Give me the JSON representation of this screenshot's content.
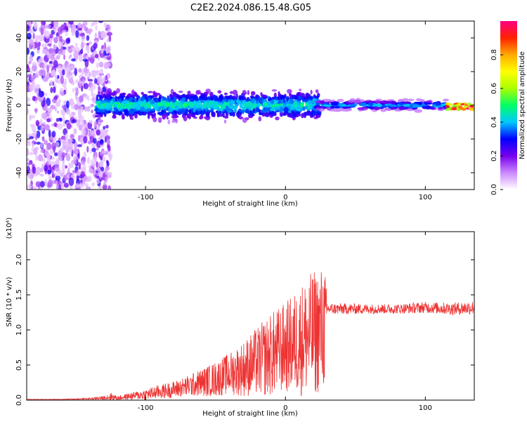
{
  "title": "C2E2.2024.086.15.48.G05",
  "chart_data": [
    {
      "type": "heatmap",
      "xlabel": "Height of straight line (km)",
      "ylabel": "Frequency (Hz)",
      "xlim": [
        -185,
        135
      ],
      "ylim": [
        -50,
        50
      ],
      "xticks": [
        -100,
        0,
        100
      ],
      "yticks": [
        -40,
        -20,
        0,
        20,
        40
      ],
      "colorbar": {
        "label": "Normalized spectral amplitude",
        "range": [
          0.0,
          1.0
        ],
        "ticks": [
          "0.0",
          "0.2",
          "0.4",
          "0.6",
          "0.8"
        ],
        "colors": [
          "#ffffff",
          "#cc88ff",
          "#7700ee",
          "#0000ff",
          "#00c8ff",
          "#00ff66",
          "#aaff00",
          "#ffff00",
          "#ffaa00",
          "#ff2200",
          "#ff0080"
        ]
      },
      "regions": [
        {
          "x": [
            -185,
            -125
          ],
          "f_center": 0,
          "f_spread": 50,
          "amplitude": 0.15,
          "pattern": "scattered noise"
        },
        {
          "x": [
            -135,
            25
          ],
          "f_center": 0,
          "f_spread": 8,
          "amplitude": 0.4,
          "pattern": "dense band"
        },
        {
          "x": [
            22,
            115
          ],
          "f_center": 0,
          "f_spread": 2.5,
          "amplitude": 0.42,
          "pattern": "narrow band"
        },
        {
          "x": [
            115,
            135
          ],
          "f_center": -1,
          "f_spread": 2,
          "amplitude": 1.0,
          "pattern": "peak"
        }
      ]
    },
    {
      "type": "line",
      "xlabel": "Height of straight line (km)",
      "ylabel": "SNR (10 * v/v)",
      "yscale_label": "(x10⁴)",
      "xlim": [
        -185,
        135
      ],
      "ylim": [
        0,
        2.4
      ],
      "xticks": [
        -100,
        0,
        100
      ],
      "yticks": [
        "0.0",
        "0.5",
        "1.0",
        "1.5",
        "2.0"
      ],
      "series": [
        {
          "color": "#ee3333",
          "x": [
            -185,
            -160,
            -140,
            -130,
            -125,
            -120,
            -110,
            -100,
            -90,
            -80,
            -70,
            -60,
            -50,
            -40,
            -30,
            -20,
            -10,
            0,
            5,
            10,
            15,
            20,
            25,
            28,
            30,
            40,
            60,
            80,
            100,
            120,
            135
          ],
          "y": [
            0.01,
            0.01,
            0.02,
            0.03,
            0.05,
            0.03,
            0.06,
            0.08,
            0.12,
            0.15,
            0.2,
            0.25,
            0.3,
            0.38,
            0.45,
            0.55,
            0.65,
            0.75,
            0.8,
            0.85,
            0.9,
            0.95,
            1.0,
            1.05,
            1.3,
            1.3,
            1.3,
            1.3,
            1.32,
            1.3,
            1.32
          ],
          "noise": [
            0.005,
            0.005,
            0.01,
            0.03,
            0.06,
            0.03,
            0.05,
            0.08,
            0.1,
            0.12,
            0.15,
            0.2,
            0.25,
            0.3,
            0.4,
            0.5,
            0.6,
            0.65,
            0.7,
            0.8,
            0.85,
            0.9,
            0.9,
            0.9,
            0.08,
            0.08,
            0.07,
            0.07,
            0.08,
            0.09,
            0.1
          ]
        }
      ]
    }
  ]
}
